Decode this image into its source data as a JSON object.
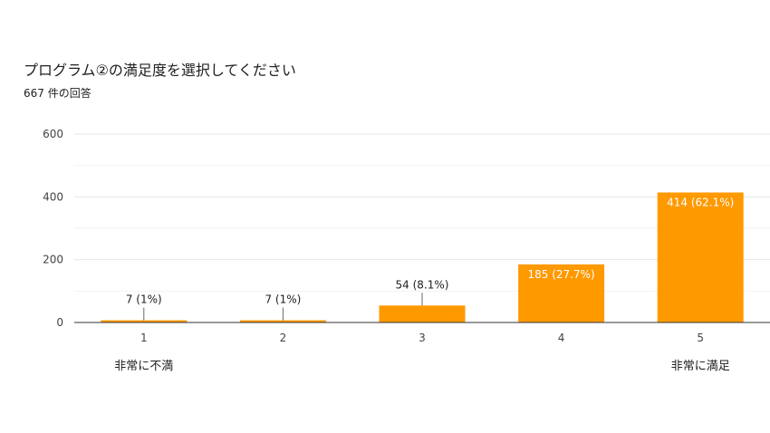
{
  "header": {
    "title": "プログラム②の満足度を選択してください",
    "response_count": "667 件の回答"
  },
  "colors": {
    "bar": "#ff9900",
    "grid": "#e6e6e6",
    "axis": "#333333"
  },
  "chart_data": {
    "type": "bar",
    "title": "プログラム②の満足度を選択してください",
    "categories": [
      "1",
      "2",
      "3",
      "4",
      "5"
    ],
    "values": [
      7,
      7,
      54,
      185,
      414
    ],
    "data_labels": [
      "7 (1%)",
      "7 (1%)",
      "54 (8.1%)",
      "185 (27.7%)",
      "414 (62.1%)"
    ],
    "ylim": [
      0,
      600
    ],
    "yticks": [
      0,
      200,
      400,
      600
    ],
    "grid": true,
    "scale_anchors": {
      "low": "非常に不満",
      "high": "非常に満足"
    }
  }
}
